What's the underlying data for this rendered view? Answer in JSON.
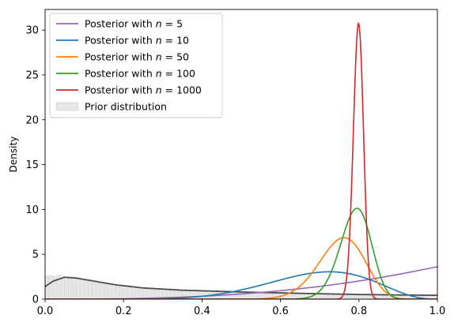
{
  "chart_data": {
    "type": "line",
    "ylabel": "Density",
    "xlabel": "",
    "xlim": [
      0,
      1
    ],
    "ylim": [
      0,
      32.3
    ],
    "xticks": [
      "0.0",
      "0.2",
      "0.4",
      "0.6",
      "0.8",
      "1.0"
    ],
    "yticks": [
      "0",
      "5",
      "10",
      "15",
      "20",
      "25",
      "30"
    ],
    "grid": false,
    "legend_position": "top-left",
    "legend_prefix": "Posterior with",
    "prior_label": "Prior distribution",
    "series": [
      {
        "name": "n = 5",
        "n_label": "5",
        "color": "#9467bd",
        "mode": 0.999,
        "peak": 3.58
      },
      {
        "name": "n = 10",
        "n_label": "10",
        "color": "#1f77b4",
        "mode": 0.725,
        "peak": 3.05
      },
      {
        "name": "n = 50",
        "n_label": "50",
        "color": "#ff7f0e",
        "mode": 0.762,
        "peak": 6.85
      },
      {
        "name": "n = 100",
        "n_label": "100",
        "color": "#2ca02c",
        "mode": 0.795,
        "peak": 10.15
      },
      {
        "name": "n = 1000",
        "n_label": "1000",
        "color": "#d62728",
        "mode": 0.799,
        "peak": 30.8
      }
    ],
    "prior": {
      "curve_color": "#4d4d4d",
      "fill_color": "#e6e6e6",
      "curve_points": [
        [
          0.0,
          1.4
        ],
        [
          0.02,
          2.0
        ],
        [
          0.05,
          2.45
        ],
        [
          0.08,
          2.35
        ],
        [
          0.12,
          2.05
        ],
        [
          0.18,
          1.6
        ],
        [
          0.25,
          1.25
        ],
        [
          0.35,
          1.0
        ],
        [
          0.5,
          0.8
        ],
        [
          0.65,
          0.65
        ],
        [
          0.8,
          0.52
        ],
        [
          0.9,
          0.47
        ],
        [
          1.0,
          0.43
        ]
      ],
      "histogram_bin_width": 0.01
    }
  }
}
